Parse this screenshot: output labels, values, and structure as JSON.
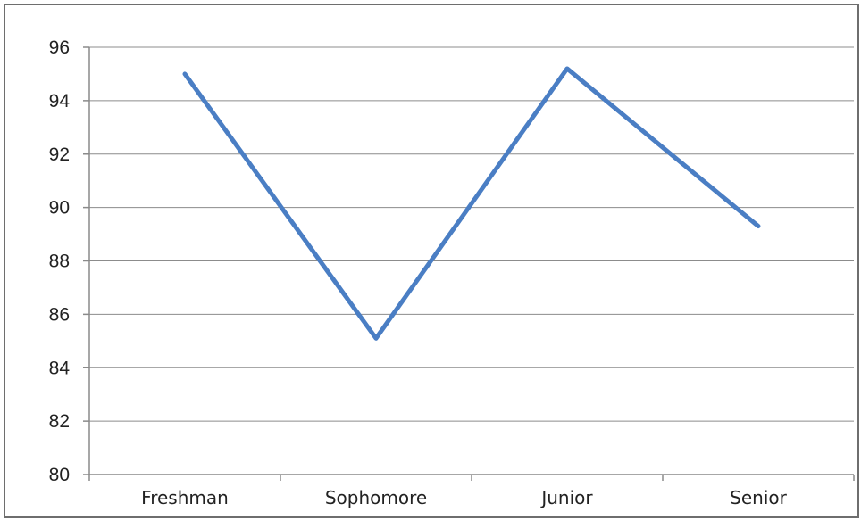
{
  "chart_data": {
    "type": "line",
    "categories": [
      "Freshman",
      "Sophomore",
      "Junior",
      "Senior"
    ],
    "series": [
      {
        "values": [
          95.0,
          85.1,
          95.2,
          89.3
        ],
        "color": "#4a7ec4"
      }
    ],
    "ylim": [
      80,
      96
    ],
    "yticks": [
      "80",
      "82",
      "84",
      "86",
      "88",
      "90",
      "92",
      "94",
      "96"
    ],
    "grid": true,
    "legend": "none"
  }
}
